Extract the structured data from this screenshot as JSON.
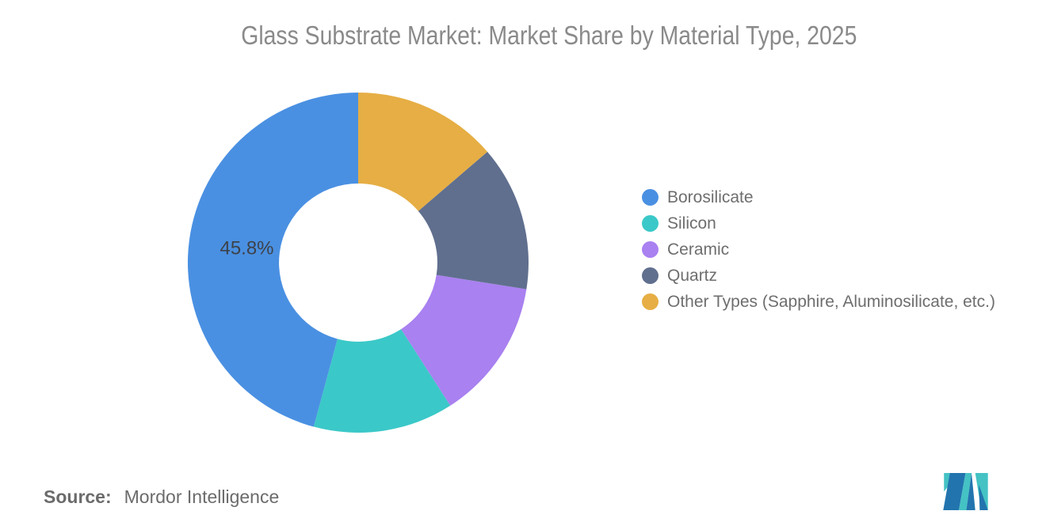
{
  "chart": {
    "title": "Glass Substrate Market: Market Share by Material Type, 2025"
  },
  "chart_data": {
    "type": "pie",
    "subtype": "donut",
    "title": "Glass Substrate Market: Market Share by Material Type, 2025",
    "unit": "percent",
    "start_angle": "12-o-clock",
    "rotation": "counterclockwise",
    "inner_radius_ratio": 0.465,
    "legend_position": "right",
    "series": [
      {
        "name": "Borosilicate",
        "value": 45.8,
        "color": "#4a90e2",
        "data_label": "45.8%"
      },
      {
        "name": "Silicon",
        "value": 13.3,
        "color": "#3bc8c8",
        "data_label": ""
      },
      {
        "name": "Ceramic",
        "value": 13.4,
        "color": "#a981f0",
        "data_label": ""
      },
      {
        "name": "Quartz",
        "value": 13.8,
        "color": "#606f8e",
        "data_label": ""
      },
      {
        "name": "Other Types (Sapphire, Aluminosilicate, etc.)",
        "value": 13.7,
        "color": "#e6ae44",
        "data_label": ""
      }
    ]
  },
  "source": {
    "label": "Source:",
    "name": "Mordor Intelligence"
  },
  "logo": {
    "name": "mordor-intelligence-logo",
    "teal_color": "#44c2c4",
    "blue_color": "#2274ae"
  }
}
